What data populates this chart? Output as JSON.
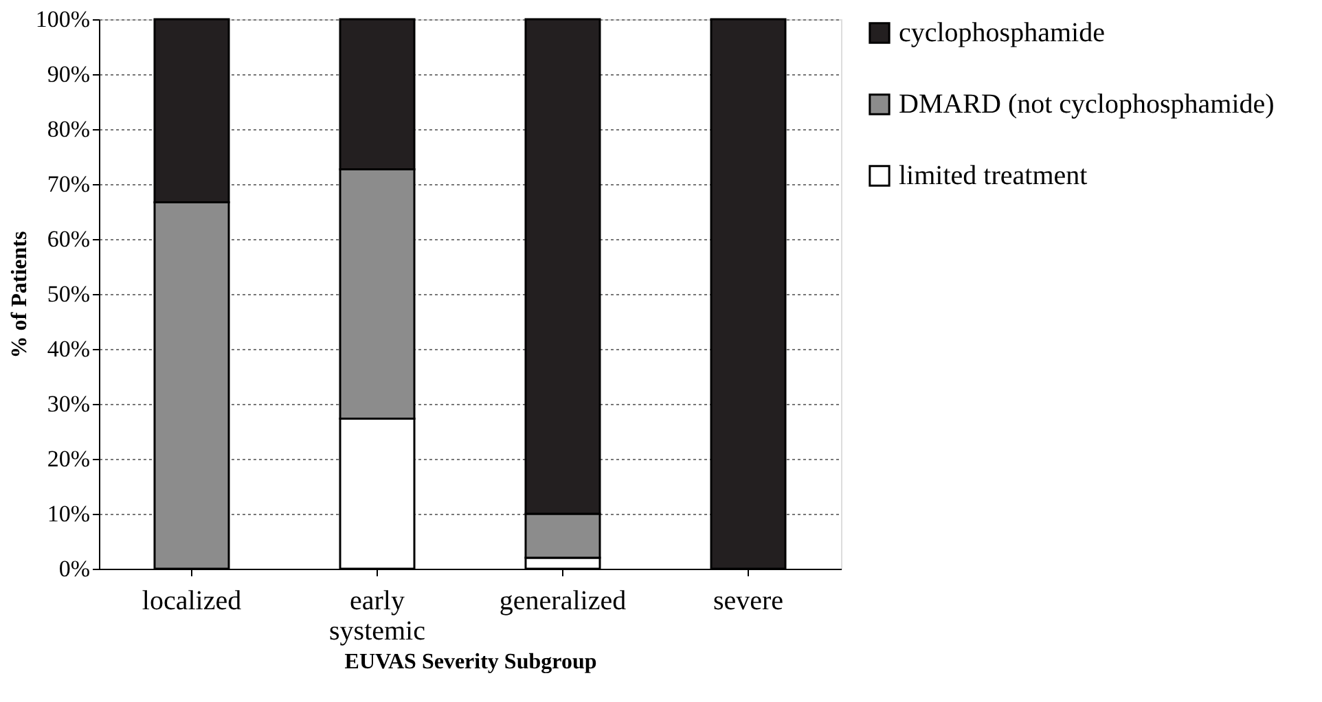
{
  "chart_data": {
    "type": "bar",
    "stacked": true,
    "xlabel": "EUVAS Severity Subgroup",
    "ylabel": "% of Patients",
    "categories": [
      "localized",
      "early systemic",
      "generalized",
      "severe"
    ],
    "series": [
      {
        "name": "limited treatment",
        "color": "#ffffff",
        "values": [
          0,
          27.3,
          2,
          0
        ]
      },
      {
        "name": "DMARD (not cyclophosphamide)",
        "color": "#8c8c8c",
        "values": [
          66.7,
          45.4,
          8,
          0
        ]
      },
      {
        "name": "cyclophosphamide",
        "color": "#231f20",
        "values": [
          33.3,
          27.3,
          90,
          100
        ]
      }
    ],
    "ylim": [
      0,
      100
    ],
    "yticks": [
      {
        "value": 0,
        "label": "0%"
      },
      {
        "value": 10,
        "label": "10%"
      },
      {
        "value": 20,
        "label": "20%"
      },
      {
        "value": 30,
        "label": "30%"
      },
      {
        "value": 40,
        "label": "40%"
      },
      {
        "value": 50,
        "label": "50%"
      },
      {
        "value": 60,
        "label": "60%"
      },
      {
        "value": 70,
        "label": "70%"
      },
      {
        "value": 80,
        "label": "80%"
      },
      {
        "value": 90,
        "label": "90%"
      },
      {
        "value": 100,
        "label": "100%"
      }
    ],
    "grid": "y",
    "legend": "right"
  }
}
